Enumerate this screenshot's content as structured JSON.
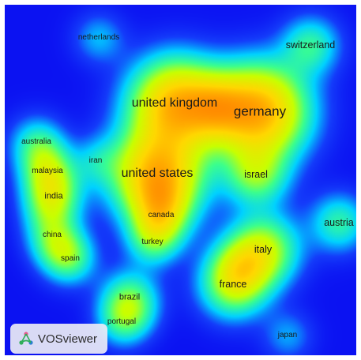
{
  "app": {
    "logo_text": "VOSviewer",
    "logo_icon": "vosviewer-logo-icon"
  },
  "map": {
    "view": "density visualization",
    "colors": {
      "background": "#0b12f2",
      "low": "#00e0ff",
      "mid": "#c8ff00",
      "high": "#ffd400",
      "peak": "#ff3a00"
    },
    "terms": [
      {
        "id": "netherlands",
        "label": "netherlands",
        "weight": 0.18
      },
      {
        "id": "switzerland",
        "label": "switzerland",
        "weight": 0.32
      },
      {
        "id": "united-kingdom",
        "label": "united kingdom",
        "weight": 0.92
      },
      {
        "id": "germany",
        "label": "germany",
        "weight": 1.0
      },
      {
        "id": "australia",
        "label": "australia",
        "weight": 0.25
      },
      {
        "id": "iran",
        "label": "iran",
        "weight": 0.16
      },
      {
        "id": "united-states",
        "label": "united states",
        "weight": 0.95
      },
      {
        "id": "israel",
        "label": "israel",
        "weight": 0.42
      },
      {
        "id": "malaysia",
        "label": "malaysia",
        "weight": 0.22
      },
      {
        "id": "india",
        "label": "india",
        "weight": 0.3
      },
      {
        "id": "canada",
        "label": "canada",
        "weight": 0.3
      },
      {
        "id": "austria",
        "label": "austria",
        "weight": 0.32
      },
      {
        "id": "china",
        "label": "china",
        "weight": 0.22
      },
      {
        "id": "turkey",
        "label": "turkey",
        "weight": 0.22
      },
      {
        "id": "italy",
        "label": "italy",
        "weight": 0.55
      },
      {
        "id": "spain",
        "label": "spain",
        "weight": 0.22
      },
      {
        "id": "france",
        "label": "france",
        "weight": 0.5
      },
      {
        "id": "brazil",
        "label": "brazil",
        "weight": 0.32
      },
      {
        "id": "portugal",
        "label": "portugal",
        "weight": 0.2
      },
      {
        "id": "japan",
        "label": "japan",
        "weight": 0.16
      }
    ]
  }
}
